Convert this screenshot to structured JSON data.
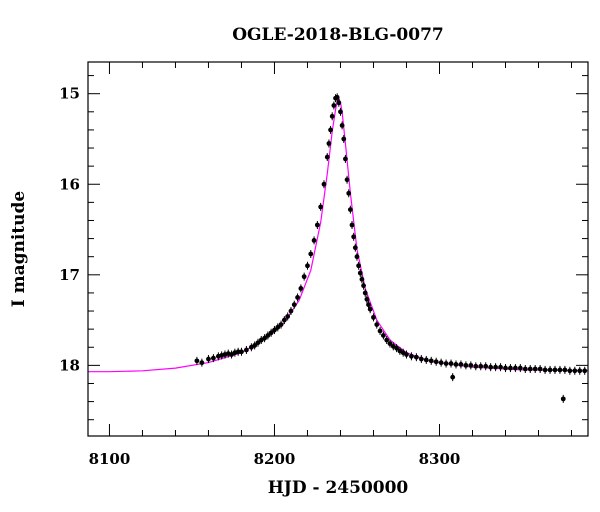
{
  "chart_data": {
    "type": "scatter",
    "title": "OGLE-2018-BLG-0077",
    "xlabel": "HJD - 2450000",
    "ylabel": "I magnitude",
    "xlim": [
      8087,
      8390
    ],
    "ylim": [
      18.78,
      14.65
    ],
    "y_inverted": true,
    "x_ticks": [
      8100,
      8200,
      8300
    ],
    "y_ticks": [
      15,
      16,
      17,
      18
    ],
    "grid": false,
    "legend": "none",
    "colors": {
      "points": "#000000",
      "model": "#ff00ff",
      "frame": "#000000"
    },
    "series": [
      {
        "kind": "points_with_errorbars",
        "x": [
          8153,
          8156,
          8160,
          8163,
          8166,
          8168,
          8170,
          8172,
          8174,
          8176,
          8178,
          8180,
          8183,
          8186,
          8188,
          8190,
          8192,
          8194,
          8196,
          8198,
          8200,
          8202,
          8204,
          8206,
          8208,
          8210,
          8212,
          8214,
          8216,
          8218,
          8220,
          8222,
          8224,
          8226,
          8228,
          8230,
          8232,
          8233,
          8234,
          8235,
          8236,
          8237,
          8238,
          8239,
          8240,
          8241,
          8242,
          8243,
          8244,
          8245,
          8246,
          8247,
          8248,
          8249,
          8250,
          8251,
          8252,
          8253,
          8254,
          8255,
          8256,
          8257,
          8258,
          8260,
          8262,
          8264,
          8266,
          8268,
          8270,
          8272,
          8274,
          8276,
          8278,
          8280,
          8283,
          8286,
          8289,
          8292,
          8295,
          8298,
          8301,
          8304,
          8307,
          8310,
          8313,
          8316,
          8319,
          8322,
          8325,
          8328,
          8331,
          8334,
          8337,
          8340,
          8343,
          8346,
          8349,
          8352,
          8355,
          8358,
          8361,
          8364,
          8367,
          8370,
          8373,
          8376,
          8379,
          8382,
          8385,
          8388,
          8308,
          8375
        ],
        "y": [
          17.95,
          17.97,
          17.93,
          17.92,
          17.9,
          17.89,
          17.88,
          17.87,
          17.88,
          17.86,
          17.85,
          17.85,
          17.83,
          17.8,
          17.78,
          17.75,
          17.72,
          17.7,
          17.67,
          17.64,
          17.61,
          17.58,
          17.55,
          17.5,
          17.46,
          17.4,
          17.33,
          17.25,
          17.15,
          17.02,
          16.9,
          16.77,
          16.62,
          16.45,
          16.25,
          16.0,
          15.7,
          15.55,
          15.4,
          15.25,
          15.13,
          15.05,
          15.04,
          15.1,
          15.2,
          15.35,
          15.5,
          15.72,
          15.95,
          16.1,
          16.28,
          16.45,
          16.58,
          16.7,
          16.8,
          16.9,
          16.98,
          17.05,
          17.12,
          17.2,
          17.27,
          17.33,
          17.38,
          17.47,
          17.55,
          17.62,
          17.67,
          17.72,
          17.76,
          17.79,
          17.81,
          17.84,
          17.86,
          17.88,
          17.9,
          17.91,
          17.93,
          17.94,
          17.95,
          17.96,
          17.97,
          17.98,
          17.98,
          17.99,
          17.99,
          18.0,
          18.0,
          18.01,
          18.01,
          18.01,
          18.02,
          18.02,
          18.02,
          18.03,
          18.03,
          18.03,
          18.03,
          18.04,
          18.04,
          18.04,
          18.04,
          18.05,
          18.05,
          18.05,
          18.05,
          18.05,
          18.06,
          18.06,
          18.06,
          18.06,
          18.13,
          18.37
        ]
      },
      {
        "kind": "model_curve",
        "x": [
          8087,
          8100,
          8120,
          8140,
          8160,
          8180,
          8195,
          8205,
          8215,
          8222,
          8228,
          8232,
          8235,
          8237,
          8238,
          8239,
          8240,
          8241,
          8243,
          8246,
          8250,
          8255,
          8262,
          8270,
          8280,
          8295,
          8320,
          8350,
          8390
        ],
        "y": [
          18.07,
          18.07,
          18.06,
          18.03,
          17.97,
          17.86,
          17.7,
          17.55,
          17.28,
          16.95,
          16.42,
          15.88,
          15.42,
          15.18,
          15.08,
          15.05,
          15.1,
          15.2,
          15.55,
          16.1,
          16.72,
          17.15,
          17.5,
          17.72,
          17.86,
          17.96,
          18.02,
          18.05,
          18.06
        ]
      }
    ]
  }
}
